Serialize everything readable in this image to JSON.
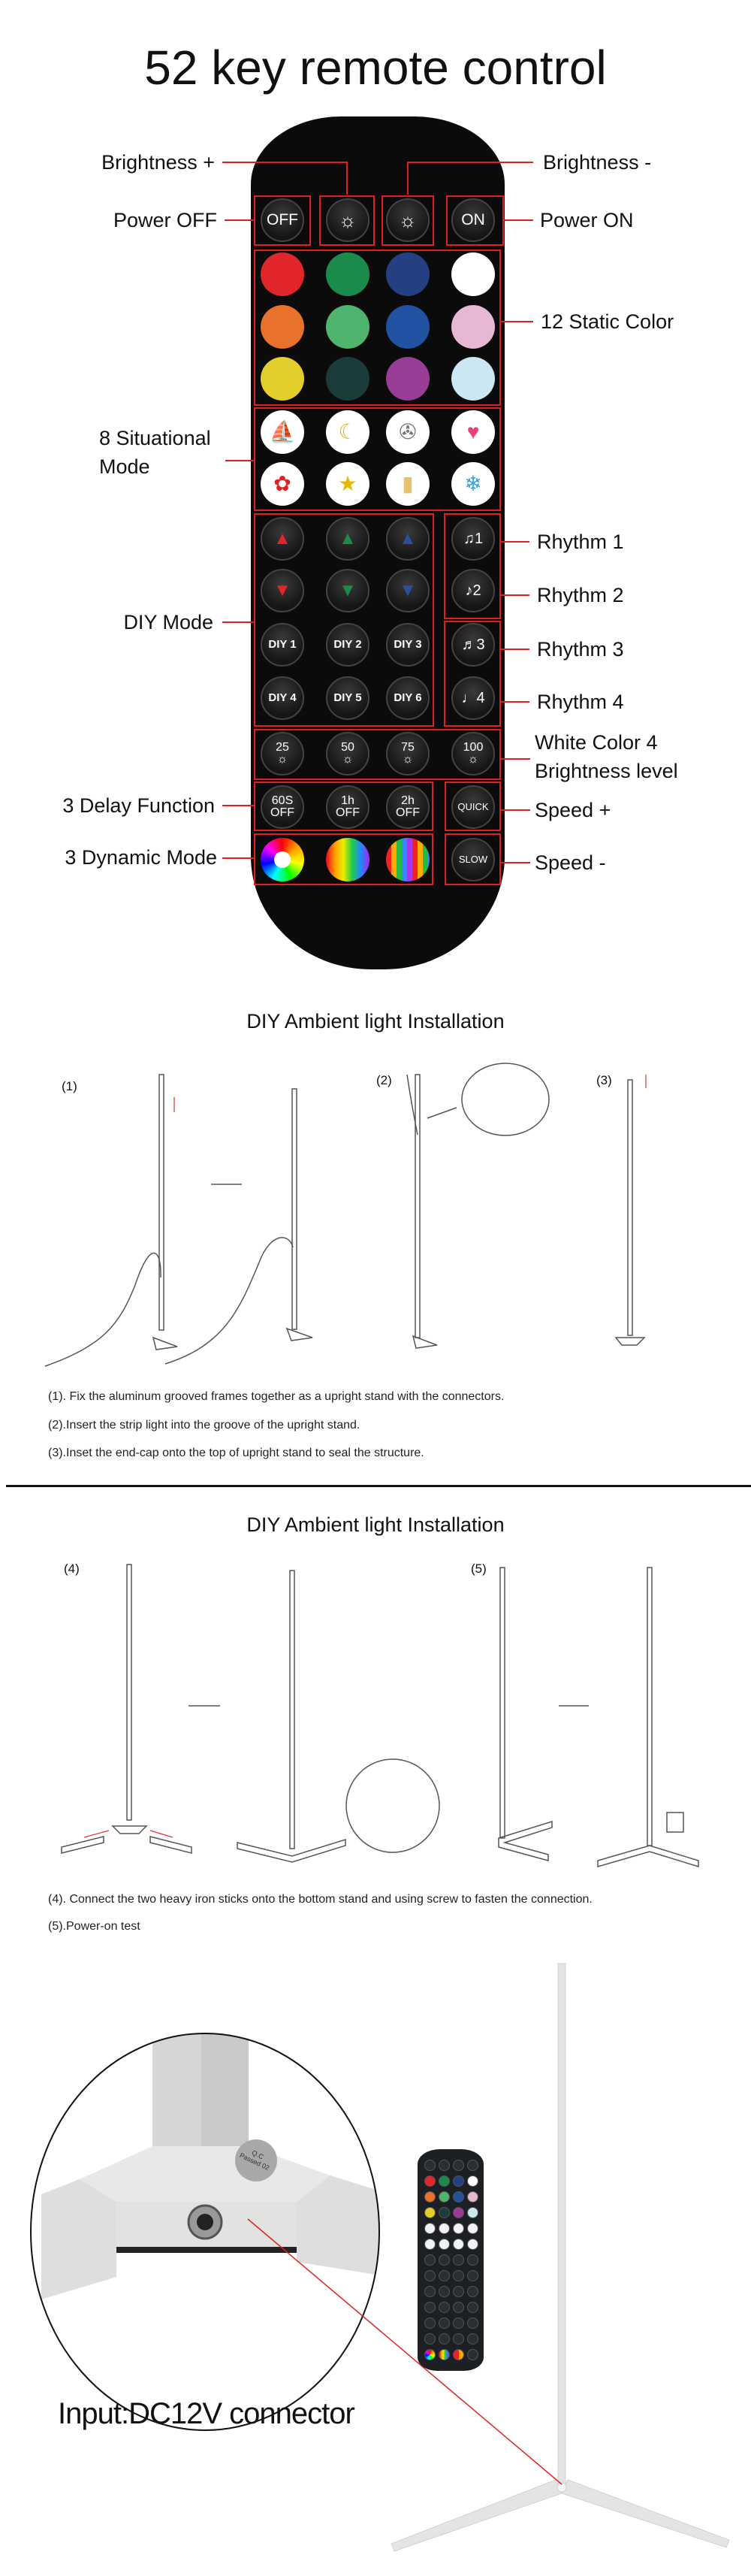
{
  "title": "52 key remote control",
  "labels": {
    "brightness_plus": "Brightness +",
    "brightness_minus": "Brightness -",
    "power_off": "Power OFF",
    "power_on": "Power ON",
    "static_color": "12 Static Color",
    "situational_1": "8 Situational",
    "situational_2": "Mode",
    "diy_mode": "DIY Mode",
    "rhythm_1": "Rhythm 1",
    "rhythm_2": "Rhythm 2",
    "rhythm_3": "Rhythm 3",
    "rhythm_4": "Rhythm 4",
    "white_1": "White Color 4",
    "white_2": "Brightness level",
    "delay": "3 Delay Function",
    "dynamic": "3 Dynamic Mode",
    "speed_plus": "Speed +",
    "speed_minus": "Speed -"
  },
  "remote": {
    "power_row": [
      {
        "text": "OFF",
        "icon": "power-off"
      },
      {
        "text": "",
        "icon": "brightness-up-icon"
      },
      {
        "text": "",
        "icon": "brightness-down-icon"
      },
      {
        "text": "ON",
        "icon": "power-on"
      }
    ],
    "static_colors": [
      "#e0262b",
      "#1b8b4c",
      "#243f82",
      "#ffffff",
      "#e8712b",
      "#4fb46e",
      "#2152a2",
      "#e7b7d3",
      "#e3cf2b",
      "#1c3b3b",
      "#983c95",
      "#cbe7f3"
    ],
    "situational": [
      {
        "icon": "sailboat-icon",
        "glyph": "⛵"
      },
      {
        "icon": "moon-icon",
        "glyph": "☾"
      },
      {
        "icon": "film-reel-icon",
        "glyph": "✇"
      },
      {
        "icon": "hearts-icon",
        "glyph": "♥"
      },
      {
        "icon": "rose-icon",
        "glyph": "✿"
      },
      {
        "icon": "stars-icon",
        "glyph": "★"
      },
      {
        "icon": "candle-icon",
        "glyph": "▮"
      },
      {
        "icon": "snowflake-icon",
        "glyph": "❄"
      }
    ],
    "diy_arrows": [
      {
        "dir": "up",
        "color": "#e0262b"
      },
      {
        "dir": "up",
        "color": "#1b8b4c"
      },
      {
        "dir": "up",
        "color": "#2a4f9c"
      },
      {
        "dir": "down",
        "color": "#e0262b"
      },
      {
        "dir": "down",
        "color": "#1b8b4c"
      },
      {
        "dir": "down",
        "color": "#2a4f9c"
      }
    ],
    "diy_buttons": [
      "DIY 1",
      "DIY 2",
      "DIY 3",
      "DIY 4",
      "DIY 5",
      "DIY 6"
    ],
    "rhythm_buttons": [
      "♫1",
      "♪2",
      "♬3",
      "♩4"
    ],
    "white_levels": [
      "25",
      "50",
      "75",
      "100"
    ],
    "delay_buttons": [
      "60S OFF",
      "1h OFF",
      "2h OFF"
    ],
    "speed_buttons": [
      "QUICK",
      "SLOW"
    ],
    "dynamic_icons": [
      "color-wheel-icon",
      "rainbow-gradient-icon",
      "rainbow-stripes-icon"
    ]
  },
  "install1": {
    "title": "DIY Ambient light Installation",
    "steps": [
      "(1)",
      "(2)",
      "(3)"
    ],
    "captions": [
      "(1). Fix the aluminum grooved frames together as a upright stand with the connectors.",
      "(2).Insert the strip light into the groove of the upright stand.",
      "(3).Inset the end-cap onto the top of upright stand to seal the structure."
    ]
  },
  "install2": {
    "title": "DIY Ambient light Installation",
    "steps": [
      "(4)",
      "(5)"
    ],
    "captions": [
      "(4). Connect the two heavy iron sticks onto the bottom stand and using screw to fasten the connection.",
      "(5).Power-on test"
    ]
  },
  "photo": {
    "sticker": "Q.C Passed 02",
    "connector_label": "Input:DC12V connector"
  },
  "colors": {
    "accent_line": "#e02020",
    "remote_body": "#0b0b0b"
  }
}
